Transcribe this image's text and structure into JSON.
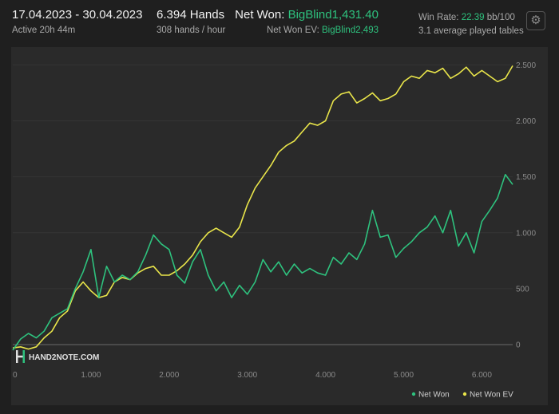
{
  "header": {
    "date_range": "17.04.2023 - 30.04.2023",
    "active": "Active 20h 44m",
    "hands": "6.394 Hands",
    "hands_per_hour": "308 hands / hour",
    "net_won_label": "Net Won:",
    "net_won_value": "BigBlind1,431.40",
    "net_won_ev_label": "Net Won  EV:",
    "net_won_ev_value": "BigBlind2,493",
    "win_rate_label": "Win Rate:",
    "win_rate_value": "22.39",
    "win_rate_unit": "bb/100",
    "avg_tables": "3.1 average played tables"
  },
  "logo_text": "HAND2NOTE.COM",
  "colors": {
    "net_won": "#2ec27e",
    "net_won_ev": "#e9e54a",
    "accent_green": "#2ec27e",
    "background": "#1f1f1f",
    "panel": "#2a2a2a"
  },
  "icons": {
    "settings": "gear-icon"
  },
  "chart_data": {
    "type": "line",
    "xlim": [
      0,
      6394
    ],
    "ylim": [
      -100,
      2560
    ],
    "x_ticks": [
      0,
      1000,
      2000,
      3000,
      4000,
      5000,
      6000
    ],
    "x_tick_labels": [
      "0",
      "1.000",
      "2.000",
      "3.000",
      "4.000",
      "5.000",
      "6.000"
    ],
    "y_ticks": [
      0,
      500,
      1000,
      1500,
      2000,
      2500
    ],
    "y_tick_labels": [
      "0",
      "500",
      "1.000",
      "1.500",
      "2.000",
      "2.500"
    ],
    "legend": [
      "Net Won",
      "Net Won  EV"
    ],
    "legend_position": "bottom-right",
    "grid": "horizontal",
    "series": [
      {
        "name": "Net Won",
        "color": "#2ec27e",
        "x": [
          0,
          100,
          200,
          300,
          400,
          500,
          600,
          700,
          800,
          900,
          1000,
          1100,
          1200,
          1300,
          1400,
          1500,
          1600,
          1700,
          1800,
          1900,
          2000,
          2100,
          2200,
          2300,
          2400,
          2500,
          2600,
          2700,
          2800,
          2900,
          3000,
          3100,
          3200,
          3300,
          3400,
          3500,
          3600,
          3700,
          3800,
          3900,
          4000,
          4100,
          4200,
          4300,
          4400,
          4500,
          4600,
          4700,
          4800,
          4900,
          5000,
          5100,
          5200,
          5300,
          5400,
          5500,
          5600,
          5700,
          5800,
          5900,
          6000,
          6100,
          6200,
          6300,
          6394
        ],
        "y": [
          -50,
          50,
          100,
          60,
          120,
          240,
          280,
          320,
          500,
          650,
          850,
          420,
          700,
          560,
          620,
          580,
          650,
          800,
          980,
          900,
          850,
          620,
          550,
          740,
          850,
          620,
          480,
          560,
          420,
          530,
          450,
          560,
          760,
          650,
          740,
          620,
          720,
          640,
          680,
          640,
          620,
          780,
          720,
          820,
          760,
          900,
          1200,
          960,
          980,
          780,
          860,
          920,
          1000,
          1050,
          1150,
          1000,
          1200,
          880,
          1000,
          820,
          1100,
          1200,
          1310,
          1520,
          1431
        ]
      },
      {
        "name": "Net Won  EV",
        "color": "#e9e54a",
        "x": [
          0,
          100,
          200,
          300,
          400,
          500,
          600,
          700,
          800,
          900,
          1000,
          1100,
          1200,
          1300,
          1400,
          1500,
          1600,
          1700,
          1800,
          1900,
          2000,
          2100,
          2200,
          2300,
          2400,
          2500,
          2600,
          2700,
          2800,
          2900,
          3000,
          3100,
          3200,
          3300,
          3400,
          3500,
          3600,
          3700,
          3800,
          3900,
          4000,
          4100,
          4200,
          4300,
          4400,
          4500,
          4600,
          4700,
          4800,
          4900,
          5000,
          5100,
          5200,
          5300,
          5400,
          5500,
          5600,
          5700,
          5800,
          5900,
          6000,
          6100,
          6200,
          6300,
          6394
        ],
        "y": [
          -30,
          -20,
          -40,
          -20,
          60,
          120,
          240,
          300,
          480,
          560,
          480,
          420,
          440,
          560,
          600,
          580,
          640,
          680,
          700,
          620,
          620,
          660,
          720,
          800,
          920,
          1000,
          1040,
          1000,
          960,
          1050,
          1250,
          1400,
          1500,
          1600,
          1720,
          1780,
          1820,
          1900,
          1980,
          1960,
          2000,
          2180,
          2240,
          2260,
          2160,
          2200,
          2250,
          2180,
          2200,
          2240,
          2350,
          2400,
          2380,
          2450,
          2430,
          2470,
          2380,
          2420,
          2480,
          2400,
          2450,
          2400,
          2350,
          2380,
          2493
        ]
      }
    ]
  }
}
